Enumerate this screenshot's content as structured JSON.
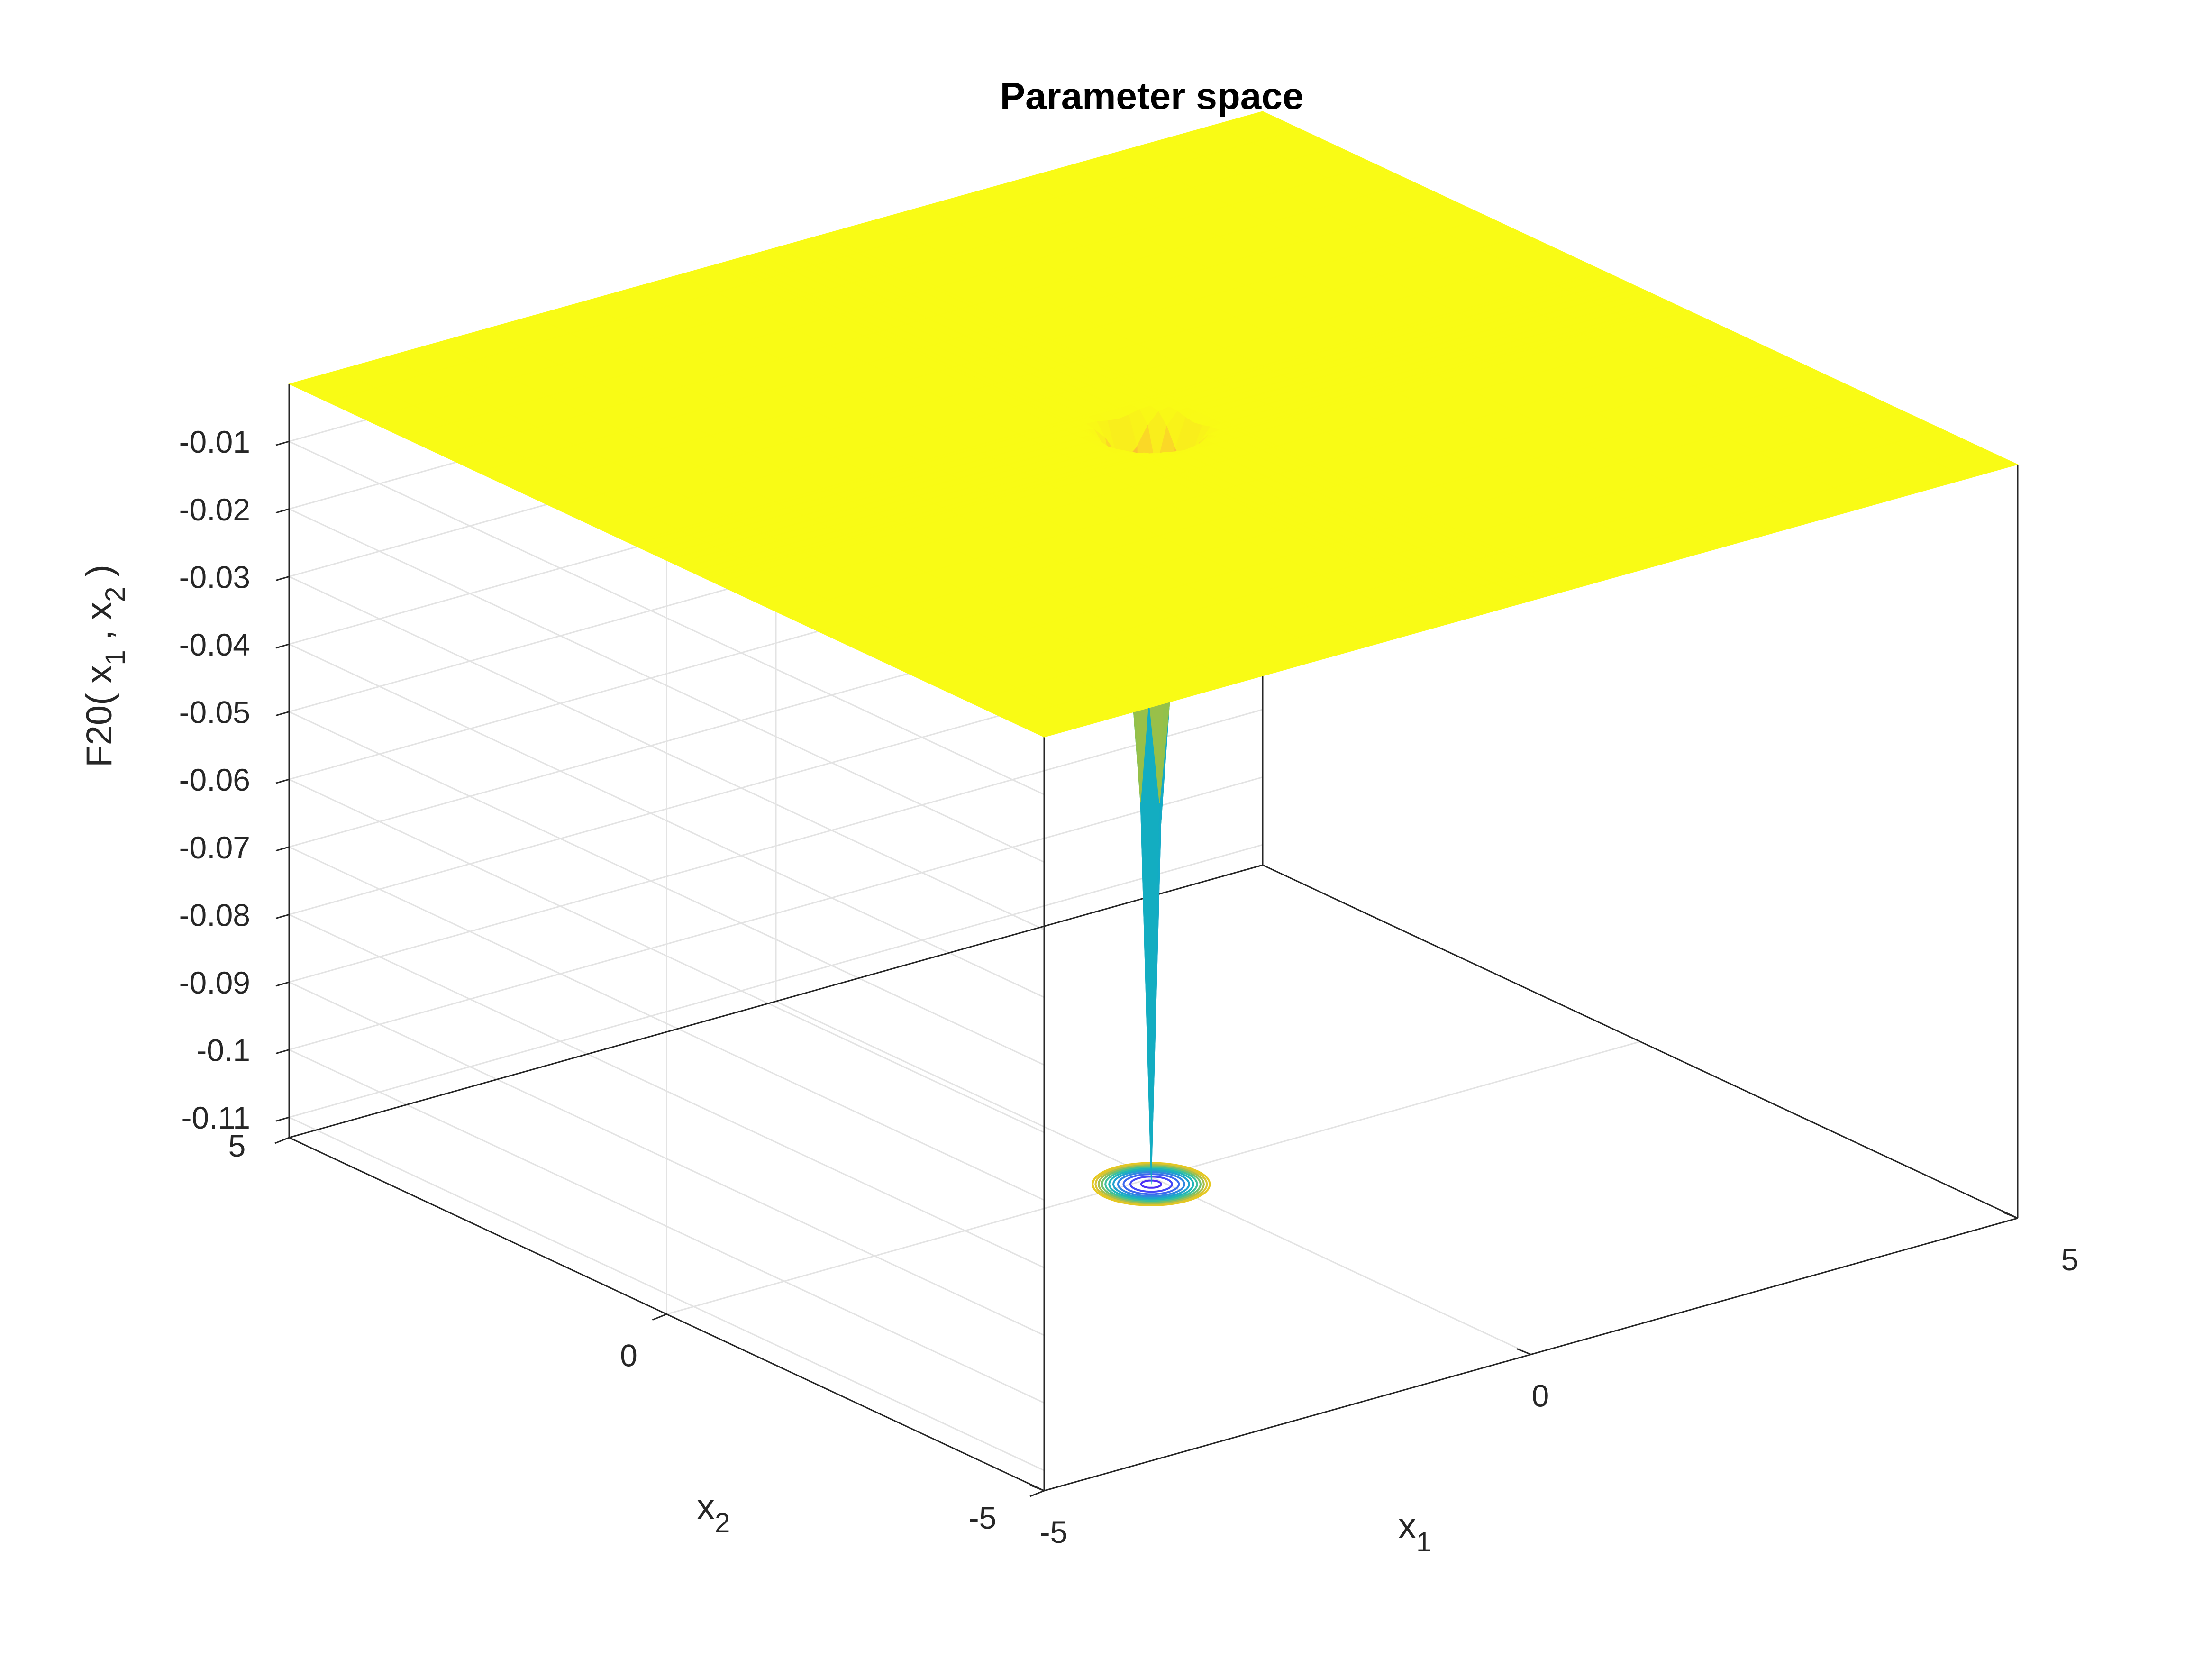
{
  "chart_data": {
    "type": "surface",
    "title": "Parameter space",
    "xlabel": {
      "base": "x",
      "sub": "1"
    },
    "ylabel": {
      "base": "x",
      "sub": "2"
    },
    "zlabel": {
      "prefix": "F20( x",
      "sub1": "1",
      "mid": " , x",
      "sub2": "2",
      "suffix": " )"
    },
    "xlim": [
      -5,
      5
    ],
    "ylim": [
      -5,
      5
    ],
    "zlim": [
      -0.113,
      -0.0015
    ],
    "x_ticks": [
      {
        "value": -5,
        "label": "-5"
      },
      {
        "value": 0,
        "label": "0"
      },
      {
        "value": 5,
        "label": "5"
      }
    ],
    "y_ticks": [
      {
        "value": -5,
        "label": "-5"
      },
      {
        "value": 0,
        "label": "0"
      },
      {
        "value": 5,
        "label": "5"
      }
    ],
    "z_ticks": [
      {
        "value": -0.01,
        "label": "-0.01"
      },
      {
        "value": -0.02,
        "label": "-0.02"
      },
      {
        "value": -0.03,
        "label": "-0.03"
      },
      {
        "value": -0.04,
        "label": "-0.04"
      },
      {
        "value": -0.05,
        "label": "-0.05"
      },
      {
        "value": -0.06,
        "label": "-0.06"
      },
      {
        "value": -0.07,
        "label": "-0.07"
      },
      {
        "value": -0.08,
        "label": "-0.08"
      },
      {
        "value": -0.09,
        "label": "-0.09"
      },
      {
        "value": -0.1,
        "label": "-0.1"
      },
      {
        "value": -0.11,
        "label": "-0.11"
      }
    ],
    "surface": {
      "plateau_value": -0.0015,
      "minimum": {
        "x1": -0.1,
        "x2": -0.1,
        "value": -0.113
      },
      "well_halfwidth": 0.55,
      "colormap": "parula",
      "plateau_color": "#f9fb15"
    },
    "contour": {
      "levels": [
        -0.01,
        -0.02,
        -0.03,
        -0.04,
        -0.05,
        -0.06,
        -0.07,
        -0.08,
        -0.09,
        -0.1,
        -0.11
      ],
      "colors": [
        "#e6c81f",
        "#d9c430",
        "#a8be4a",
        "#72c06c",
        "#3dbf9b",
        "#1fb5b8",
        "#1fa1ce",
        "#2f86e0",
        "#3c69ee",
        "#4548f7",
        "#4a2ff5"
      ]
    },
    "grid": true,
    "box": true
  }
}
